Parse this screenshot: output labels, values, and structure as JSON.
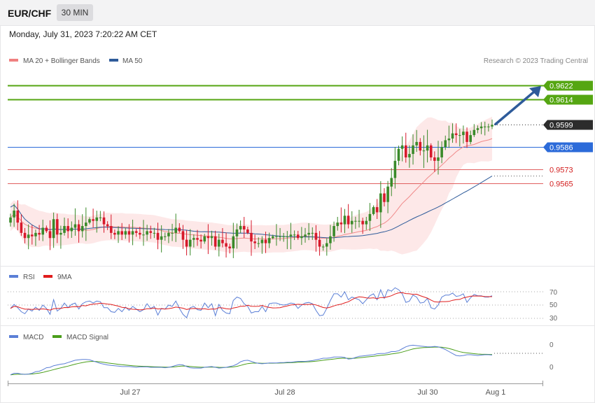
{
  "header": {
    "symbol": "EUR/CHF",
    "timeframe": "30 MIN",
    "datetime": "Monday, July 31, 2023 7:20:22 AM CET"
  },
  "main_panel": {
    "legend": [
      {
        "label": "MA 20 + Bollinger Bands",
        "color": "#f08080"
      },
      {
        "label": "MA 50",
        "color": "#2e5b9a"
      }
    ],
    "copyright": "Research © 2023 Trading Central"
  },
  "rsi_panel": {
    "legend": [
      {
        "label": "RSI",
        "color": "#5b7fd6"
      },
      {
        "label": "9MA",
        "color": "#e01c1c"
      }
    ],
    "levels": [
      "70",
      "50",
      "30"
    ]
  },
  "macd_panel": {
    "legend": [
      {
        "label": "MACD",
        "color": "#5b7fd6"
      },
      {
        "label": "MACD Signal",
        "color": "#4a9e1a"
      }
    ],
    "levels": [
      "0",
      "0"
    ]
  },
  "x_axis": {
    "ticks": [
      "Jul 27",
      "Jul 28",
      "Jul 30",
      "Aug 1"
    ]
  },
  "colors": {
    "up": "#3a8a2a",
    "down": "#d7192b",
    "accent_green": "#55a612",
    "accent_blue": "#2c6bd9",
    "current": "#2c2c2c",
    "arrow": "#2e5b9a",
    "band_fill": "#fde4e4"
  },
  "chart_data": {
    "type": "candlestick",
    "title": "EUR/CHF 30 MIN",
    "y_range": [
      0.9518,
      0.9633
    ],
    "x_ticks": [
      "Jul 27",
      "Jul 28",
      "Jul 30",
      "Aug 1"
    ],
    "levels": [
      {
        "value": 0.9622,
        "label": "0.9622",
        "kind": "resistance"
      },
      {
        "value": 0.9614,
        "label": "0.9614",
        "kind": "resistance"
      },
      {
        "value": 0.9599,
        "label": "0.9599",
        "kind": "current"
      },
      {
        "value": 0.9586,
        "label": "0.9586",
        "kind": "pivot"
      },
      {
        "value": 0.9573,
        "label": "0.9573",
        "kind": "support"
      },
      {
        "value": 0.9565,
        "label": "0.9565",
        "kind": "support"
      }
    ],
    "closes": [
      0.9545,
      0.9549,
      0.9542,
      0.9536,
      0.9533,
      0.9535,
      0.9534,
      0.9536,
      0.9535,
      0.9539,
      0.9537,
      0.9533,
      0.9544,
      0.9535,
      0.9536,
      0.954,
      0.9537,
      0.9539,
      0.9541,
      0.9537,
      0.954,
      0.9542,
      0.9544,
      0.9543,
      0.9545,
      0.9545,
      0.9541,
      0.954,
      0.9536,
      0.9535,
      0.9537,
      0.9535,
      0.9537,
      0.9535,
      0.9537,
      0.9536,
      0.9535,
      0.9535,
      0.9537,
      0.9536,
      0.9536,
      0.9532,
      0.9534,
      0.9534,
      0.9536,
      0.9536,
      0.9539,
      0.9537,
      0.9532,
      0.9528,
      0.9532,
      0.9533,
      0.9532,
      0.9531,
      0.9534,
      0.9533,
      0.9534,
      0.9528,
      0.9532,
      0.953,
      0.9528,
      0.9527,
      0.9534,
      0.9538,
      0.954,
      0.9538,
      0.9536,
      0.9531,
      0.953,
      0.953,
      0.9532,
      0.953,
      0.9533,
      0.9534,
      0.9534,
      0.9534,
      0.9534,
      0.9534,
      0.9535,
      0.9535,
      0.9533,
      0.9534,
      0.9535,
      0.9536,
      0.9536,
      0.9532,
      0.9528,
      0.9528,
      0.953,
      0.9534,
      0.954,
      0.9542,
      0.9541,
      0.9546,
      0.9541,
      0.9543,
      0.9543,
      0.9543,
      0.9541,
      0.9543,
      0.9547,
      0.9551,
      0.9548,
      0.9559,
      0.9554,
      0.9563,
      0.9568,
      0.9578,
      0.9585,
      0.9587,
      0.958,
      0.9582,
      0.9587,
      0.9589,
      0.9584,
      0.9584,
      0.9587,
      0.958,
      0.9578,
      0.958,
      0.9586,
      0.959,
      0.9591,
      0.9594,
      0.9593,
      0.9593,
      0.9595,
      0.9589,
      0.9593,
      0.9596,
      0.9597,
      0.9598,
      0.9598,
      0.9598,
      0.9599
    ],
    "series": [
      {
        "name": "MA 20",
        "closes_ref": true
      },
      {
        "name": "MA 50",
        "closes_ref": true
      },
      {
        "name": "RSI",
        "values": [
          45,
          51,
          46,
          40,
          37,
          44,
          41,
          47,
          42,
          50,
          45,
          36,
          58,
          41,
          45,
          53,
          46,
          51,
          53,
          44,
          52,
          55,
          56,
          53,
          56,
          55,
          46,
          46,
          40,
          39,
          45,
          40,
          47,
          42,
          48,
          44,
          40,
          43,
          52,
          45,
          48,
          35,
          45,
          44,
          50,
          48,
          56,
          45,
          36,
          31,
          46,
          48,
          43,
          42,
          53,
          46,
          52,
          34,
          51,
          42,
          38,
          37,
          57,
          62,
          60,
          52,
          48,
          38,
          40,
          40,
          48,
          40,
          52,
          53,
          53,
          51,
          50,
          51,
          53,
          52,
          45,
          50,
          53,
          54,
          52,
          42,
          34,
          35,
          45,
          57,
          67,
          67,
          62,
          70,
          58,
          62,
          60,
          58,
          52,
          58,
          64,
          67,
          58,
          73,
          60,
          73,
          71,
          76,
          73,
          67,
          54,
          56,
          65,
          62,
          53,
          54,
          60,
          46,
          44,
          50,
          62,
          65,
          65,
          68,
          63,
          64,
          67,
          54,
          61,
          66,
          64,
          64,
          62,
          62,
          64
        ],
        "range": [
          20,
          80
        ]
      },
      {
        "name": "9MA",
        "range": [
          20,
          80
        ]
      },
      {
        "name": "MACD",
        "values": [
          -0.00029,
          -0.00025,
          -0.00025,
          -0.00027,
          -0.00028,
          -0.00027,
          -0.00025,
          -0.00021,
          -0.0002,
          -0.00016,
          -0.00011,
          -0.0001,
          -6e-05,
          -4e-05,
          -2e-05,
          -1e-05,
          2e-05,
          5e-05,
          8e-05,
          9e-05,
          0.0001,
          0.0001,
          9e-05,
          6e-05,
          3e-05,
          0.0,
          -2e-05,
          -4e-05,
          -5e-05,
          -6e-05,
          -7e-05,
          -8e-05,
          -8e-05,
          -8e-05,
          -9e-05,
          -0.0001,
          -9e-05,
          -9e-05,
          -9e-05,
          -0.0001,
          -0.0001,
          -0.0001,
          -0.0001,
          -0.00011,
          -0.0001,
          -8e-05,
          -5e-05,
          -3e-05,
          -4e-05,
          -8e-05,
          -0.00011,
          -0.00012,
          -0.00012,
          -0.00012,
          -0.0001,
          -9e-05,
          -8e-05,
          -0.0001,
          -0.00012,
          -0.00011,
          -0.0001,
          -8e-05,
          -6e-05,
          -2e-05,
          4e-05,
          7e-05,
          8e-05,
          5e-05,
          2e-05,
          0.0,
          -1e-05,
          0.0,
          1e-05,
          1e-05,
          1e-05,
          2e-05,
          2e-05,
          3e-05,
          3e-05,
          4e-05,
          5e-05,
          5e-05,
          5e-05,
          6e-05,
          7e-05,
          9e-05,
          0.00011,
          0.00013,
          0.00013,
          0.00014,
          0.00016,
          0.00016,
          0.00016,
          0.00015,
          0.00011,
          0.00012,
          0.00015,
          0.00018,
          0.00019,
          0.0002,
          0.00021,
          0.00022,
          0.00024,
          0.00025,
          0.00025,
          0.00027,
          0.0003,
          0.0003,
          0.00032,
          0.00037,
          0.00042,
          0.00045,
          0.00046,
          0.00045,
          0.00044,
          0.00043,
          0.00042,
          0.00042,
          0.00043,
          0.00042,
          0.00039,
          0.00035,
          0.0003,
          0.00025,
          0.0002,
          0.00019,
          0.0002,
          0.00022,
          0.00022,
          0.00021,
          0.0002,
          0.00021,
          0.00022,
          0.00022,
          0.00021
        ]
      },
      {
        "name": "MACD Signal"
      }
    ]
  }
}
